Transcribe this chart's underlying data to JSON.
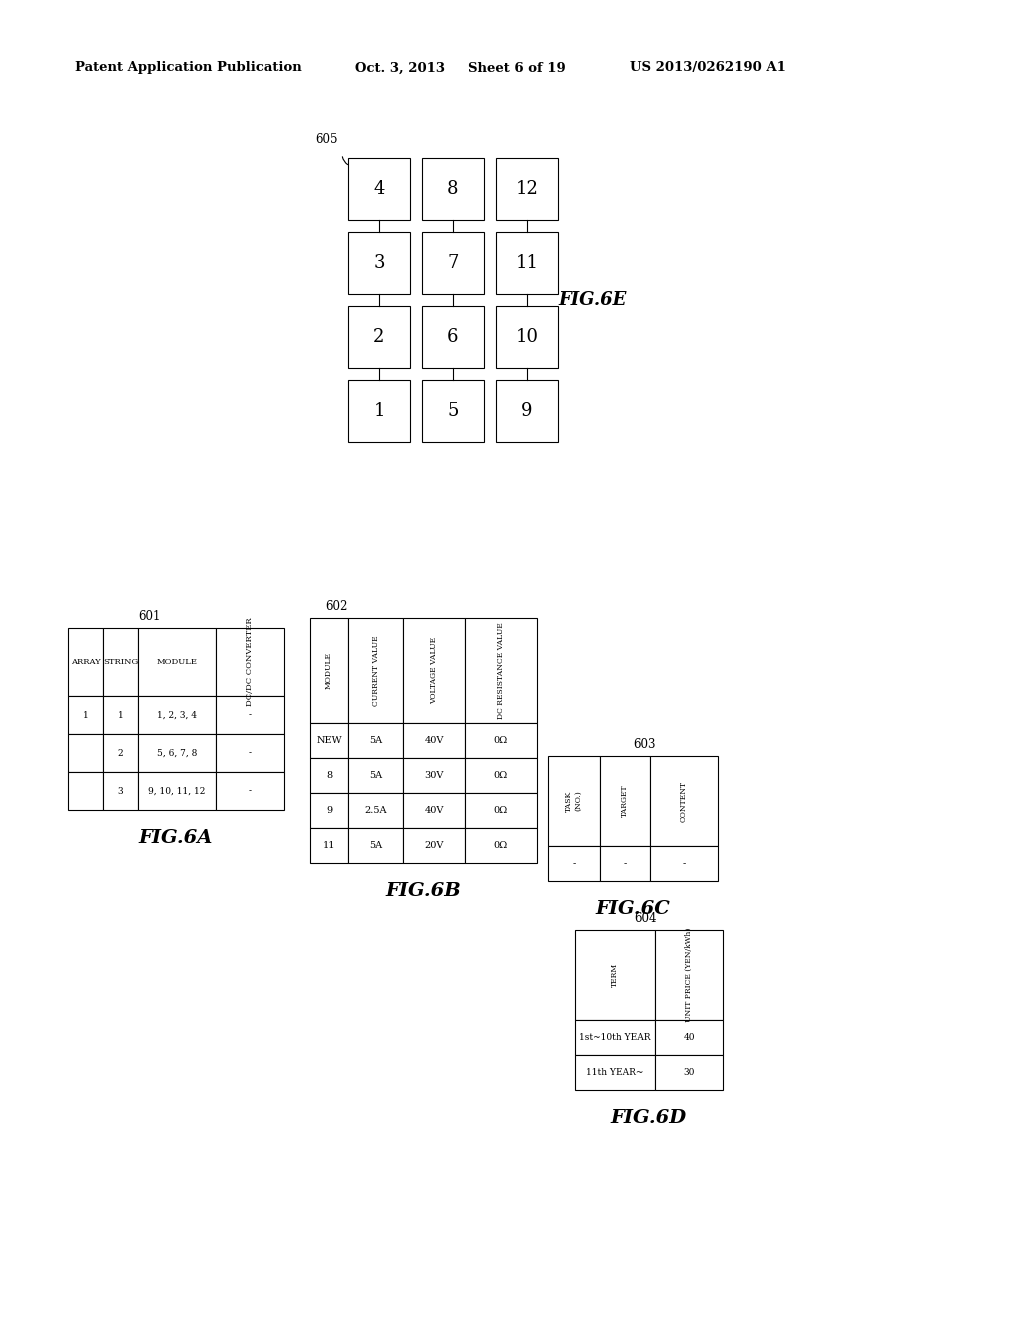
{
  "bg_color": "#ffffff",
  "header_text": "Patent Application Publication",
  "header_date": "Oct. 3, 2013",
  "header_sheet": "Sheet 6 of 19",
  "header_patent": "US 2013/0262190 A1",
  "fig6e_label": "605",
  "fig6e_grid": [
    [
      "4",
      "8",
      "12"
    ],
    [
      "3",
      "7",
      "11"
    ],
    [
      "2",
      "6",
      "10"
    ],
    [
      "1",
      "5",
      "9"
    ]
  ],
  "fig6e_figname": "FIG.6E",
  "fig6a_label": "601",
  "fig6a_cols": [
    "ARRAY",
    "STRING",
    "MODULE",
    "DC/DC CONVERTER"
  ],
  "fig6a_col_rotate": [
    false,
    false,
    false,
    true
  ],
  "fig6a_rows": [
    [
      "1",
      "1",
      "1, 2, 3, 4",
      "-"
    ],
    [
      "",
      "2",
      "5, 6, 7, 8",
      "-"
    ],
    [
      "",
      "3",
      "9, 10, 11, 12",
      "-"
    ]
  ],
  "fig6a_figname": "FIG.6A",
  "fig6b_label": "602",
  "fig6b_cols": [
    "MODULE",
    "CURRENT VALUE",
    "VOLTAGE VALUE",
    "DC RESISTANCE VALUE"
  ],
  "fig6b_rows": [
    [
      "NEW",
      "5A",
      "40V",
      "0Ω"
    ],
    [
      "8",
      "5A",
      "30V",
      "0Ω"
    ],
    [
      "9",
      "2.5A",
      "40V",
      "0Ω"
    ],
    [
      "11",
      "5A",
      "20V",
      "0Ω"
    ]
  ],
  "fig6b_figname": "FIG.6B",
  "fig6c_label": "603",
  "fig6c_cols": [
    "TASK\n(NO.)",
    "TARGET",
    "CONTENT"
  ],
  "fig6c_rows": [
    [
      "-",
      "-",
      "-"
    ]
  ],
  "fig6c_figname": "FIG.6C",
  "fig6d_label": "604",
  "fig6d_cols": [
    "TERM",
    "UNIT PRICE (YEN/kWh)"
  ],
  "fig6d_rows": [
    [
      "1st~10th YEAR",
      "40"
    ],
    [
      "11th YEAR~",
      "30"
    ]
  ],
  "fig6d_figname": "FIG.6D"
}
